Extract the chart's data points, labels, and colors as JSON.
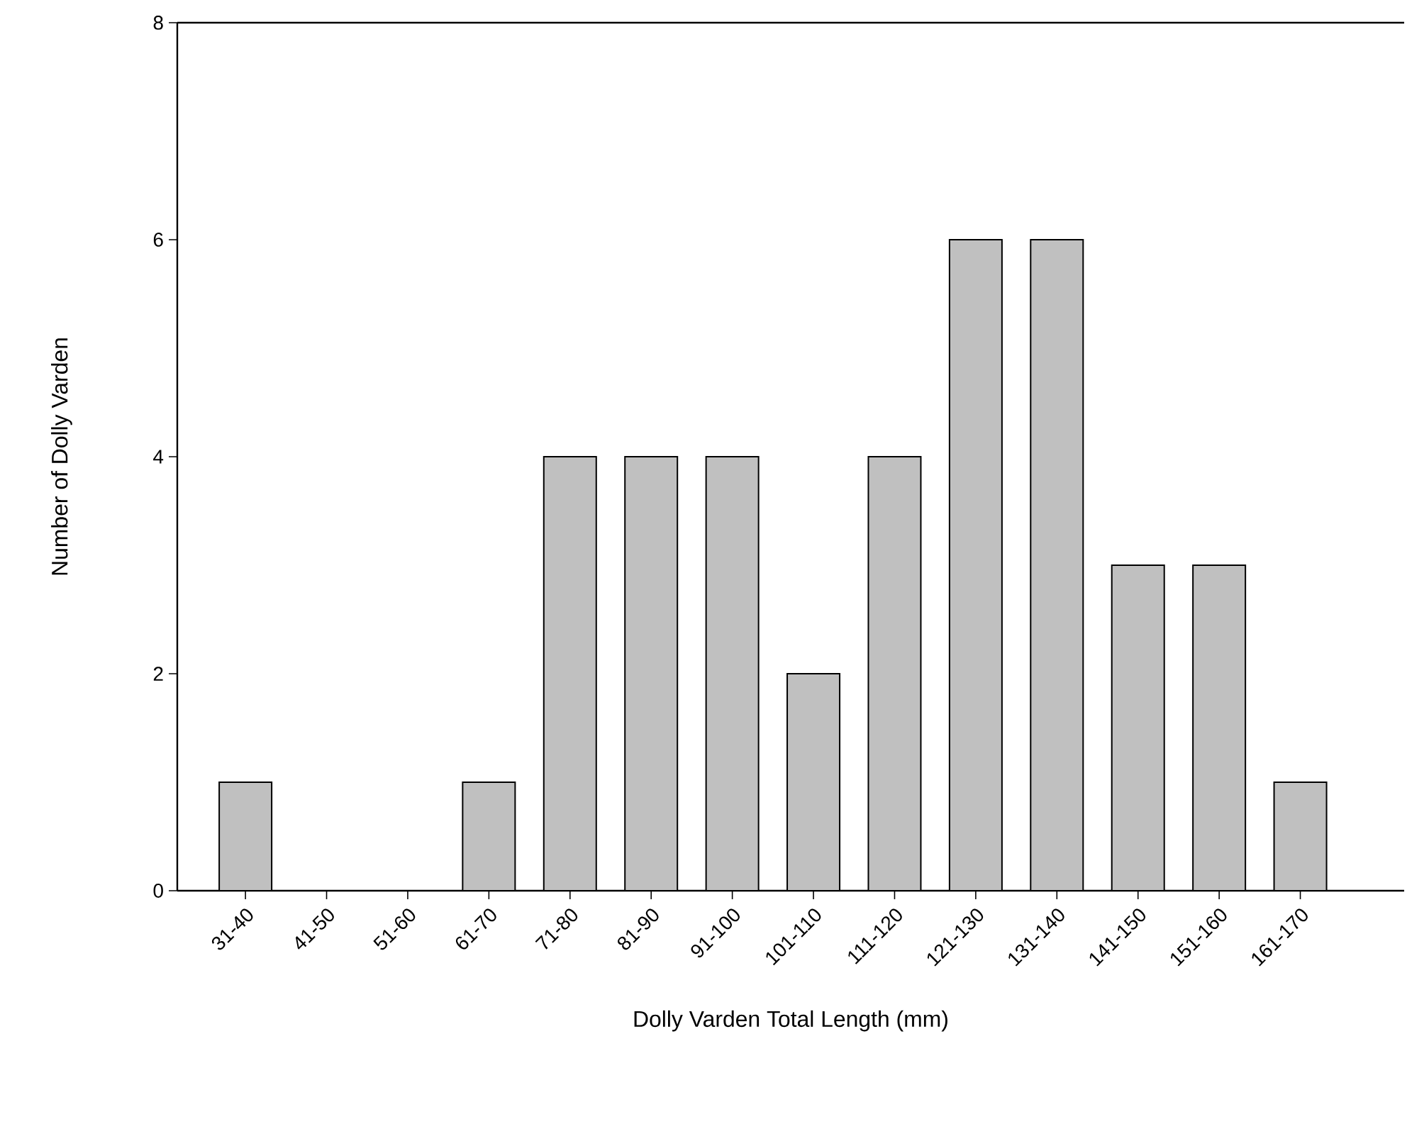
{
  "chart_data": {
    "type": "bar",
    "xlabel": "Dolly Varden Total Length (mm)",
    "ylabel": "Number of Dolly Varden",
    "categories": [
      "31-40",
      "41-50",
      "51-60",
      "61-70",
      "71-80",
      "81-90",
      "91-100",
      "101-110",
      "111-120",
      "121-130",
      "131-140",
      "141-150",
      "151-160",
      "161-170"
    ],
    "values": [
      1,
      0,
      0,
      1,
      4,
      4,
      4,
      2,
      4,
      6,
      6,
      3,
      3,
      1
    ],
    "color": "#c0c0c0",
    "ylim": [
      0,
      8
    ],
    "yticks": [
      0,
      2,
      4,
      6,
      8
    ],
    "grid": false
  }
}
